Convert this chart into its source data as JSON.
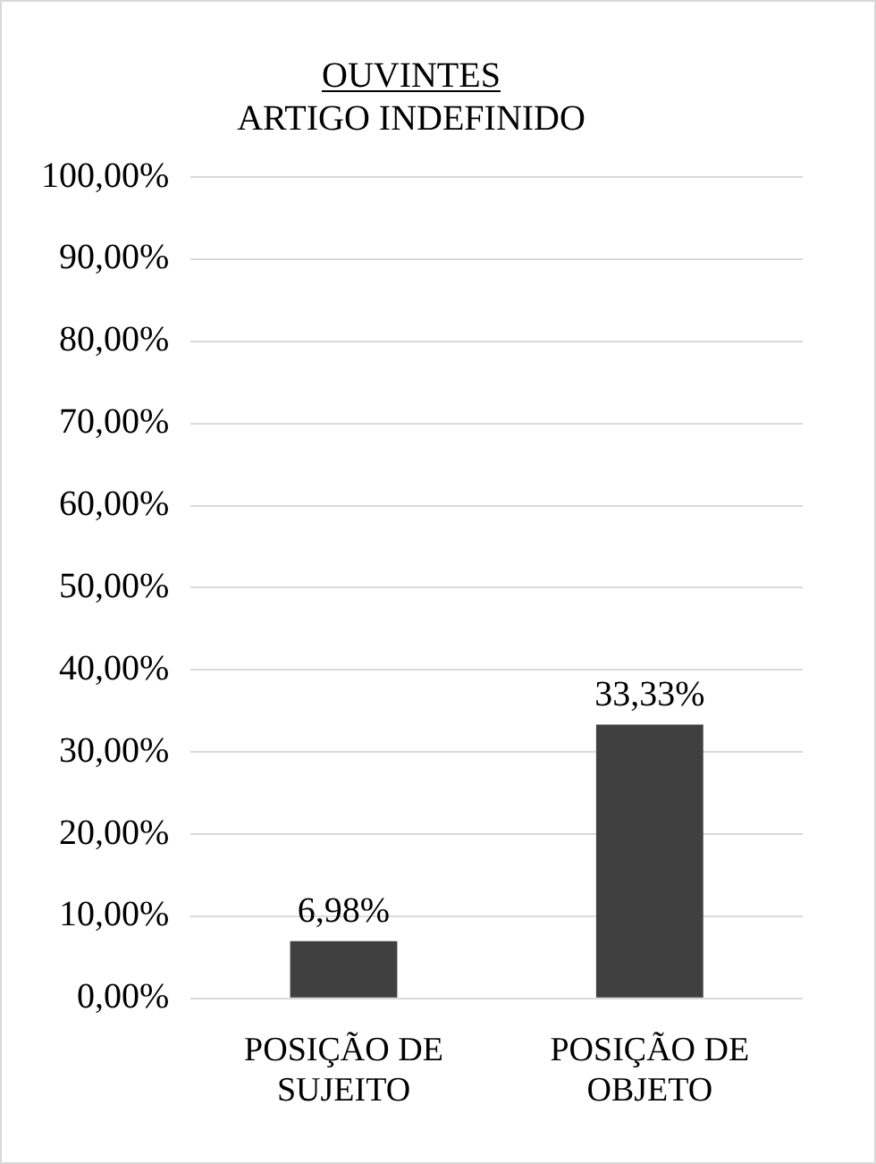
{
  "chart_data": {
    "type": "bar",
    "title": "OUVINTES",
    "subtitle": "ARTIGO INDEFINIDO",
    "categories": [
      "POSIÇÃO DE SUJEITO",
      "POSIÇÃO DE OBJETO"
    ],
    "values": [
      6.98,
      33.33
    ],
    "color": "#404040",
    "value_labels": [
      "6,98%",
      "33,33%"
    ],
    "ylim": [
      0,
      100
    ],
    "yticks": [
      {
        "value": 0,
        "label": "0,00%"
      },
      {
        "value": 10,
        "label": "10,00%"
      },
      {
        "value": 20,
        "label": "20,00%"
      },
      {
        "value": 30,
        "label": "30,00%"
      },
      {
        "value": 40,
        "label": "40,00%"
      },
      {
        "value": 50,
        "label": "50,00%"
      },
      {
        "value": 60,
        "label": "60,00%"
      },
      {
        "value": 70,
        "label": "70,00%"
      },
      {
        "value": 80,
        "label": "80,00%"
      },
      {
        "value": 90,
        "label": "90,00%"
      },
      {
        "value": 100,
        "label": "100,00%"
      }
    ],
    "grid": "y",
    "legend": false
  }
}
